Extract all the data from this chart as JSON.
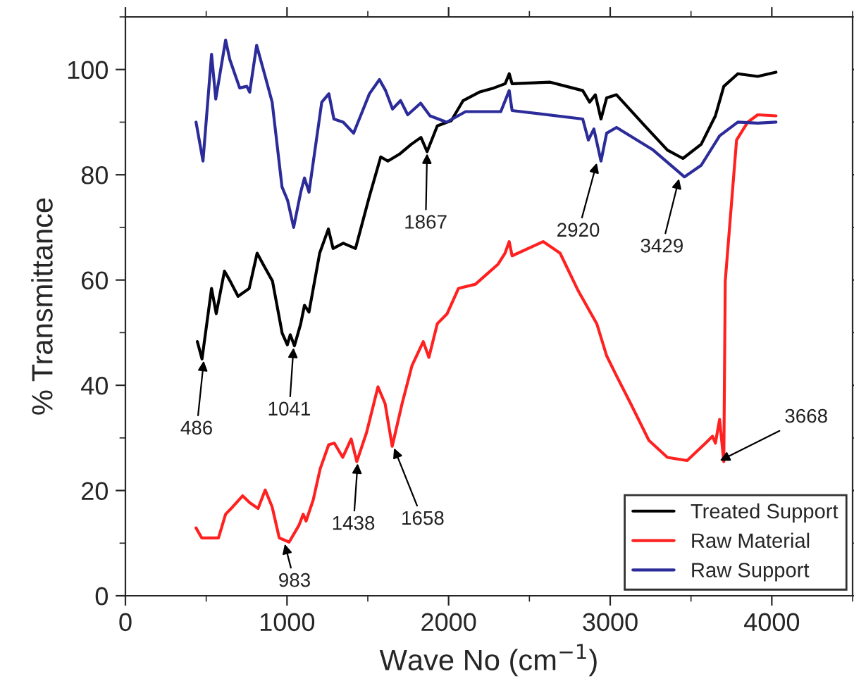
{
  "chart_data": {
    "type": "line",
    "xlabel": "Wave No (cm$^{−1}$)",
    "ylabel": "% Transmittance",
    "xlim": [
      0,
      4500
    ],
    "ylim": [
      0,
      110
    ],
    "xticks": [
      0,
      1000,
      2000,
      3000,
      4000
    ],
    "yticks": [
      0,
      20,
      40,
      60,
      80,
      100
    ],
    "grid": false,
    "legend": "bottom right",
    "line_style": "solid",
    "marker": "none",
    "series": [
      {
        "name": "Treated Support",
        "color": "#000000",
        "x": [
          445,
          474,
          533,
          562,
          613,
          648,
          697,
          766,
          815,
          852,
          910,
          970,
          1002,
          1020,
          1046,
          1085,
          1108,
          1136,
          1202,
          1256,
          1285,
          1348,
          1424,
          1510,
          1580,
          1624,
          1695,
          1769,
          1829,
          1867,
          1930,
          2017,
          2090,
          2190,
          2280,
          2350,
          2375,
          2393,
          2629,
          2830,
          2873,
          2908,
          2943,
          2978,
          3039,
          3214,
          3354,
          3450,
          3563,
          3651,
          3703,
          3790,
          3913,
          4026
        ],
        "values": [
          48.3,
          45,
          58.4,
          53.6,
          61.7,
          59.8,
          56.9,
          58.4,
          65.1,
          63,
          59.8,
          49.9,
          47.7,
          49.6,
          47.5,
          51.7,
          55.2,
          53.9,
          65.1,
          69.7,
          66,
          67,
          66,
          75.9,
          83.4,
          82.6,
          83.9,
          85.8,
          87.1,
          84.4,
          89.3,
          90.3,
          94.1,
          95.7,
          96.5,
          97.3,
          99.2,
          97.3,
          97.6,
          96,
          93.8,
          95.2,
          90.6,
          94.6,
          95.2,
          89.3,
          84.7,
          83.1,
          85.8,
          91.2,
          96.8,
          99.2,
          98.7,
          99.5
        ]
      },
      {
        "name": "Raw Material",
        "color": "#ff2020",
        "x": [
          437,
          472,
          576,
          620,
          664,
          725,
          769,
          821,
          865,
          908,
          952,
          1013,
          1074,
          1100,
          1118,
          1162,
          1205,
          1258,
          1293,
          1345,
          1397,
          1432,
          1493,
          1563,
          1607,
          1651,
          1712,
          1773,
          1843,
          1878,
          1930,
          1991,
          2061,
          2166,
          2236,
          2306,
          2349,
          2375,
          2393,
          2585,
          2690,
          2803,
          2917,
          2978,
          3039,
          3127,
          3240,
          3354,
          3476,
          3590,
          3633,
          3651,
          3677,
          3703,
          3712,
          3782,
          3851,
          3913,
          4026
        ],
        "values": [
          12.9,
          11,
          11,
          15.5,
          16.9,
          19,
          17.7,
          16.6,
          20.1,
          16.9,
          11,
          10.2,
          13.4,
          15.5,
          14.2,
          18.2,
          24.1,
          28.7,
          29,
          26.3,
          29.8,
          25.5,
          31.1,
          39.7,
          36.5,
          28.4,
          36.5,
          43.7,
          48.3,
          45.3,
          51.7,
          53.6,
          58.4,
          59.2,
          61.1,
          63,
          65.1,
          67.3,
          64.6,
          67.3,
          65.1,
          57.9,
          51.7,
          45.6,
          41.8,
          36.5,
          29.5,
          26.3,
          25.7,
          29,
          30.3,
          29,
          33.5,
          25.5,
          59.8,
          86.6,
          90,
          91.4,
          91.2
        ]
      },
      {
        "name": "Raw Support",
        "color": "#2b2b9a",
        "x": [
          437,
          480,
          533,
          559,
          620,
          646,
          707,
          751,
          769,
          812,
          865,
          908,
          969,
          1004,
          1041,
          1085,
          1108,
          1136,
          1215,
          1259,
          1290,
          1348,
          1412,
          1510,
          1572,
          1610,
          1653,
          1703,
          1747,
          1827,
          1885,
          1988,
          2105,
          2190,
          2323,
          2375,
          2393,
          2830,
          2865,
          2899,
          2943,
          2978,
          3039,
          3266,
          3459,
          3563,
          3677,
          3790,
          3913,
          4026
        ],
        "values": [
          90,
          82.6,
          102.9,
          94.4,
          105.6,
          101.9,
          96.5,
          96.8,
          95.7,
          104.6,
          98.7,
          93.8,
          77.7,
          75.1,
          70,
          76.7,
          79.4,
          76.7,
          93.8,
          95.4,
          90.6,
          90,
          87.9,
          95.4,
          98.1,
          96,
          92.5,
          94.1,
          91.4,
          93.6,
          91.2,
          90,
          92,
          92,
          92,
          96,
          92.2,
          90.6,
          86.6,
          88.7,
          82.6,
          87.9,
          89,
          84.7,
          79.6,
          81.8,
          87.4,
          90,
          89.8,
          90
        ]
      }
    ],
    "annotations": [
      {
        "text": "486",
        "x": 486,
        "y": 45
      },
      {
        "text": "1041",
        "x": 1041,
        "y": 47.5
      },
      {
        "text": "1867",
        "x": 1867,
        "y": 84.4
      },
      {
        "text": "2920",
        "x": 2920,
        "y": 82.6
      },
      {
        "text": "3429",
        "x": 3429,
        "y": 79.6
      },
      {
        "text": "3668",
        "x": 3668,
        "y": 25.5
      },
      {
        "text": "983",
        "x": 983,
        "y": 10.2
      },
      {
        "text": "1438",
        "x": 1438,
        "y": 25.5
      },
      {
        "text": "1658",
        "x": 1658,
        "y": 28.4
      }
    ]
  }
}
